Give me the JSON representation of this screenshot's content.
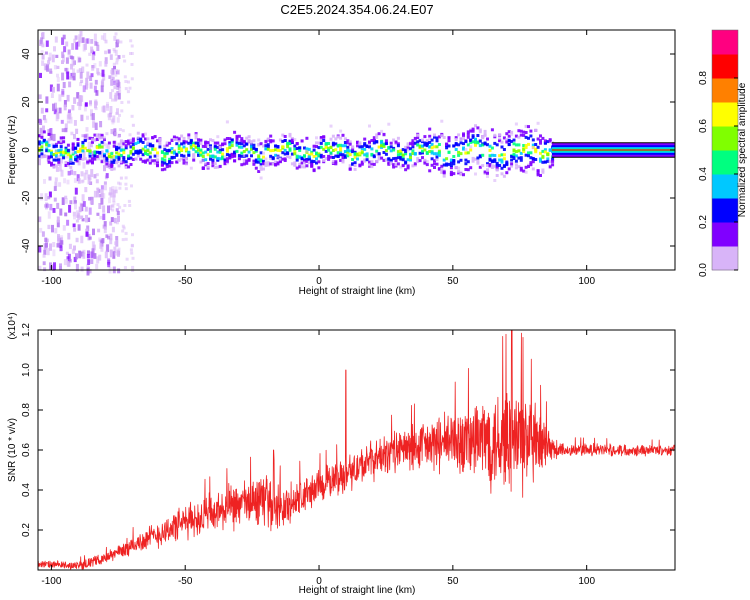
{
  "title": "C2E5.2024.354.06.24.E07",
  "chart_data": [
    {
      "type": "heatmap",
      "xlabel": "Height of straight line (km)",
      "ylabel": "Frequency (Hz)",
      "xlim": [
        -105,
        133
      ],
      "ylim": [
        -50,
        50
      ],
      "xticks": [
        -100,
        -50,
        0,
        50,
        100
      ],
      "yticks": [
        -40,
        -20,
        0,
        20,
        40
      ],
      "colorbar": {
        "label": "Normalized spectral amplitude",
        "range": [
          0,
          1
        ],
        "ticks": [
          "0.0",
          "0.2",
          "0.4",
          "0.6",
          "0.8"
        ]
      },
      "colormap": [
        "#d8b4f8",
        "#8000ff",
        "#0000ff",
        "#00c8ff",
        "#00ff80",
        "#80ff00",
        "#ffff00",
        "#ff8000",
        "#ff0000",
        "#ff0080"
      ],
      "grid": false
    },
    {
      "type": "line",
      "xlabel": "Height of straight line (km)",
      "ylabel": "SNR (10 * v/v)",
      "y_multiplier": "(x10⁴)",
      "xlim": [
        -105,
        133
      ],
      "ylim": [
        0,
        1.2
      ],
      "xticks": [
        -100,
        -50,
        0,
        50,
        100
      ],
      "yticks": [
        "0.2",
        "0.4",
        "0.6",
        "0.8",
        "1.0",
        "1.2"
      ],
      "series_color": "#ee2222",
      "trend": [
        {
          "x": -105,
          "y": 0.03
        },
        {
          "x": -90,
          "y": 0.02
        },
        {
          "x": -80,
          "y": 0.06
        },
        {
          "x": -70,
          "y": 0.12
        },
        {
          "x": -60,
          "y": 0.18
        },
        {
          "x": -50,
          "y": 0.24
        },
        {
          "x": -40,
          "y": 0.28
        },
        {
          "x": -30,
          "y": 0.32
        },
        {
          "x": -20,
          "y": 0.36
        },
        {
          "x": -15,
          "y": 0.3
        },
        {
          "x": -10,
          "y": 0.33
        },
        {
          "x": 0,
          "y": 0.42
        },
        {
          "x": 10,
          "y": 0.48
        },
        {
          "x": 20,
          "y": 0.55
        },
        {
          "x": 30,
          "y": 0.6
        },
        {
          "x": 40,
          "y": 0.62
        },
        {
          "x": 50,
          "y": 0.64
        },
        {
          "x": 60,
          "y": 0.65
        },
        {
          "x": 70,
          "y": 0.66
        },
        {
          "x": 80,
          "y": 0.63
        },
        {
          "x": 85,
          "y": 0.6
        },
        {
          "x": 95,
          "y": 0.6
        },
        {
          "x": 110,
          "y": 0.6
        },
        {
          "x": 133,
          "y": 0.6
        }
      ],
      "noise_amplitude": [
        {
          "x": -105,
          "y": 0.02
        },
        {
          "x": -80,
          "y": 0.03
        },
        {
          "x": -60,
          "y": 0.08
        },
        {
          "x": -40,
          "y": 0.12
        },
        {
          "x": -20,
          "y": 0.15
        },
        {
          "x": 0,
          "y": 0.1
        },
        {
          "x": 30,
          "y": 0.12
        },
        {
          "x": 50,
          "y": 0.18
        },
        {
          "x": 65,
          "y": 0.3
        },
        {
          "x": 75,
          "y": 0.35
        },
        {
          "x": 85,
          "y": 0.15
        },
        {
          "x": 90,
          "y": 0.04
        },
        {
          "x": 133,
          "y": 0.03
        }
      ],
      "spikes": [
        {
          "x": -17,
          "y": 0.6
        },
        {
          "x": 10,
          "y": 1.0
        },
        {
          "x": 72,
          "y": 1.2
        }
      ],
      "grid": false
    }
  ]
}
